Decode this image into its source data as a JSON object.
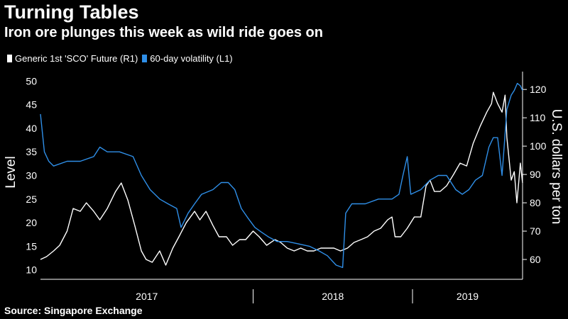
{
  "chart_data": {
    "type": "line",
    "title": "Turning Tables",
    "subtitle": "Iron ore plunges this week as wild ride goes on",
    "source": "Source: Singapore Exchange",
    "left_axis": {
      "label": "Level",
      "range": [
        8,
        52
      ],
      "ticks": [
        10,
        15,
        20,
        25,
        30,
        35,
        40,
        45,
        50
      ]
    },
    "right_axis": {
      "label": "U.S. dollars per ton",
      "range": [
        53,
        126.3
      ],
      "ticks": [
        60,
        70,
        80,
        90,
        100,
        110,
        120
      ]
    },
    "x_axis": {
      "range": [
        "2016-09-01",
        "2019-09-10"
      ],
      "year_labels": [
        "2017",
        "2018",
        "2019"
      ],
      "year_boundaries": [
        "2018-01-01",
        "2019-01-01"
      ]
    },
    "grid": false,
    "legend_position": "top-left",
    "series": [
      {
        "name": "Generic 1st 'SCO' Future  (R1)",
        "axis": "right",
        "color": "#ffffff",
        "points": [
          [
            "2016-09-01",
            60
          ],
          [
            "2016-09-15",
            61
          ],
          [
            "2016-10-01",
            63
          ],
          [
            "2016-10-15",
            65
          ],
          [
            "2016-11-01",
            70
          ],
          [
            "2016-11-15",
            78
          ],
          [
            "2016-12-01",
            77
          ],
          [
            "2016-12-15",
            80
          ],
          [
            "2017-01-01",
            77
          ],
          [
            "2017-01-15",
            74
          ],
          [
            "2017-02-01",
            78
          ],
          [
            "2017-02-20",
            84
          ],
          [
            "2017-03-05",
            87
          ],
          [
            "2017-03-20",
            81
          ],
          [
            "2017-04-05",
            72
          ],
          [
            "2017-04-20",
            63
          ],
          [
            "2017-05-01",
            60
          ],
          [
            "2017-05-15",
            59
          ],
          [
            "2017-06-01",
            63
          ],
          [
            "2017-06-15",
            58
          ],
          [
            "2017-07-01",
            64
          ],
          [
            "2017-07-15",
            68
          ],
          [
            "2017-08-01",
            73
          ],
          [
            "2017-08-20",
            77
          ],
          [
            "2017-09-01",
            74
          ],
          [
            "2017-09-15",
            77
          ],
          [
            "2017-10-01",
            72
          ],
          [
            "2017-10-15",
            68
          ],
          [
            "2017-11-01",
            68
          ],
          [
            "2017-11-15",
            65
          ],
          [
            "2017-12-01",
            67
          ],
          [
            "2017-12-15",
            67
          ],
          [
            "2018-01-01",
            70
          ],
          [
            "2018-01-15",
            68
          ],
          [
            "2018-02-01",
            65
          ],
          [
            "2018-02-20",
            67
          ],
          [
            "2018-03-05",
            66
          ],
          [
            "2018-03-20",
            64
          ],
          [
            "2018-04-05",
            63
          ],
          [
            "2018-04-20",
            64
          ],
          [
            "2018-05-05",
            63
          ],
          [
            "2018-05-20",
            63
          ],
          [
            "2018-06-05",
            64
          ],
          [
            "2018-06-20",
            64
          ],
          [
            "2018-07-05",
            64
          ],
          [
            "2018-07-20",
            63
          ],
          [
            "2018-08-05",
            64
          ],
          [
            "2018-08-20",
            66
          ],
          [
            "2018-09-05",
            67
          ],
          [
            "2018-09-20",
            68
          ],
          [
            "2018-10-05",
            70
          ],
          [
            "2018-10-20",
            71
          ],
          [
            "2018-11-05",
            74
          ],
          [
            "2018-11-15",
            75
          ],
          [
            "2018-11-22",
            68
          ],
          [
            "2018-12-05",
            68
          ],
          [
            "2018-12-20",
            71
          ],
          [
            "2019-01-05",
            75
          ],
          [
            "2019-01-20",
            75
          ],
          [
            "2019-02-01",
            86
          ],
          [
            "2019-02-10",
            88
          ],
          [
            "2019-02-20",
            84
          ],
          [
            "2019-03-05",
            84
          ],
          [
            "2019-03-20",
            86
          ],
          [
            "2019-04-05",
            90
          ],
          [
            "2019-04-20",
            94
          ],
          [
            "2019-05-05",
            93
          ],
          [
            "2019-05-20",
            101
          ],
          [
            "2019-06-05",
            107
          ],
          [
            "2019-06-20",
            112
          ],
          [
            "2019-07-01",
            115
          ],
          [
            "2019-07-05",
            119
          ],
          [
            "2019-07-15",
            115
          ],
          [
            "2019-07-25",
            112
          ],
          [
            "2019-08-01",
            118
          ],
          [
            "2019-08-05",
            103
          ],
          [
            "2019-08-15",
            88
          ],
          [
            "2019-08-22",
            91
          ],
          [
            "2019-08-28",
            80
          ],
          [
            "2019-09-01",
            87
          ],
          [
            "2019-09-05",
            94
          ],
          [
            "2019-09-10",
            87
          ]
        ]
      },
      {
        "name": "60-day volatility (L1)",
        "axis": "left",
        "color": "#2f8fe8",
        "points": [
          [
            "2016-09-01",
            43
          ],
          [
            "2016-09-10",
            35
          ],
          [
            "2016-09-20",
            33
          ],
          [
            "2016-10-01",
            32
          ],
          [
            "2016-11-01",
            33
          ],
          [
            "2016-12-01",
            33
          ],
          [
            "2017-01-01",
            34
          ],
          [
            "2017-01-15",
            36
          ],
          [
            "2017-02-01",
            35
          ],
          [
            "2017-03-01",
            35
          ],
          [
            "2017-04-01",
            34
          ],
          [
            "2017-04-20",
            30
          ],
          [
            "2017-05-10",
            27
          ],
          [
            "2017-06-01",
            25
          ],
          [
            "2017-06-20",
            24
          ],
          [
            "2017-07-10",
            23
          ],
          [
            "2017-07-20",
            19
          ],
          [
            "2017-08-05",
            22
          ],
          [
            "2017-08-20",
            24
          ],
          [
            "2017-09-05",
            26
          ],
          [
            "2017-10-01",
            27
          ],
          [
            "2017-10-20",
            28.5
          ],
          [
            "2017-11-05",
            28.5
          ],
          [
            "2017-11-20",
            27
          ],
          [
            "2017-12-05",
            23
          ],
          [
            "2017-12-20",
            21
          ],
          [
            "2018-01-05",
            19
          ],
          [
            "2018-01-20",
            18
          ],
          [
            "2018-02-05",
            17
          ],
          [
            "2018-02-25",
            16
          ],
          [
            "2018-03-20",
            16
          ],
          [
            "2018-04-15",
            15.5
          ],
          [
            "2018-05-10",
            15
          ],
          [
            "2018-06-01",
            14
          ],
          [
            "2018-06-20",
            13
          ],
          [
            "2018-07-10",
            11
          ],
          [
            "2018-07-25",
            10.5
          ],
          [
            "2018-08-01",
            22
          ],
          [
            "2018-08-15",
            24
          ],
          [
            "2018-09-15",
            24
          ],
          [
            "2018-10-15",
            25
          ],
          [
            "2018-11-15",
            25
          ],
          [
            "2018-12-01",
            26
          ],
          [
            "2018-12-10",
            30
          ],
          [
            "2018-12-20",
            34
          ],
          [
            "2018-12-28",
            26
          ],
          [
            "2019-01-20",
            27
          ],
          [
            "2019-02-10",
            29
          ],
          [
            "2019-03-01",
            30
          ],
          [
            "2019-03-20",
            30
          ],
          [
            "2019-04-10",
            27
          ],
          [
            "2019-04-25",
            26
          ],
          [
            "2019-05-10",
            27
          ],
          [
            "2019-05-25",
            29
          ],
          [
            "2019-06-10",
            30
          ],
          [
            "2019-06-25",
            36
          ],
          [
            "2019-07-05",
            38
          ],
          [
            "2019-07-15",
            38
          ],
          [
            "2019-07-25",
            30
          ],
          [
            "2019-08-05",
            44
          ],
          [
            "2019-08-15",
            47
          ],
          [
            "2019-08-22",
            48
          ],
          [
            "2019-08-29",
            49.5
          ],
          [
            "2019-09-05",
            49
          ],
          [
            "2019-09-10",
            48
          ]
        ]
      }
    ]
  }
}
